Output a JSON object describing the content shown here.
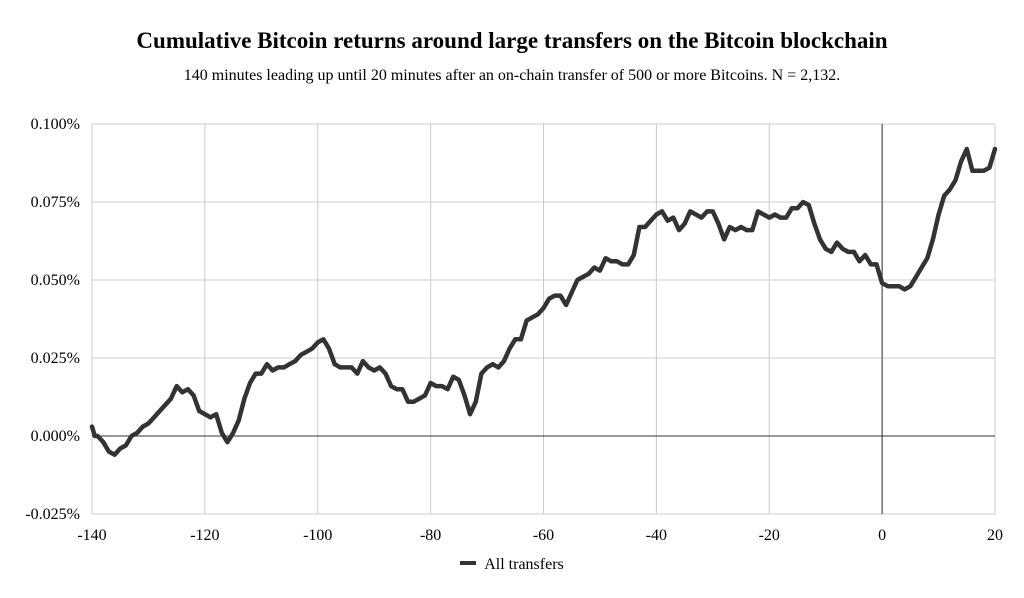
{
  "chart_data": {
    "type": "line",
    "title": "Cumulative Bitcoin returns around large transfers on the Bitcoin blockchain",
    "subtitle": "140 minutes leading up until 20 minutes after an on-chain transfer of 500 or more Bitcoins. N = 2,132.",
    "xlabel": "",
    "ylabel": "",
    "xlim": [
      -140,
      20
    ],
    "ylim": [
      -0.025,
      0.1
    ],
    "x_ticks": [
      -140,
      -120,
      -100,
      -80,
      -60,
      -40,
      -20,
      0,
      20
    ],
    "x_tick_labels": [
      "-140",
      "-120",
      "-100",
      "-80",
      "-60",
      "-40",
      "-20",
      "0",
      "20"
    ],
    "y_ticks": [
      -0.025,
      0,
      0.025,
      0.05,
      0.075,
      0.1
    ],
    "y_tick_labels": [
      "-0.025%",
      "0.000%",
      "0.025%",
      "0.050%",
      "0.075%",
      "0.100%"
    ],
    "grid": true,
    "legend_position": "bottom",
    "line_color": "#333333",
    "series": [
      {
        "name": "All transfers",
        "points": [
          [
            -140,
            0.003
          ],
          [
            -139.5,
            0.0
          ],
          [
            -139,
            0.0
          ],
          [
            -138,
            -0.002
          ],
          [
            -137,
            -0.005
          ],
          [
            -136,
            -0.006
          ],
          [
            -135,
            -0.004
          ],
          [
            -134,
            -0.003
          ],
          [
            -133,
            0.0
          ],
          [
            -132,
            0.001
          ],
          [
            -131,
            0.003
          ],
          [
            -130,
            0.004
          ],
          [
            -129,
            0.006
          ],
          [
            -128,
            0.008
          ],
          [
            -127,
            0.01
          ],
          [
            -126,
            0.012
          ],
          [
            -125,
            0.016
          ],
          [
            -124,
            0.014
          ],
          [
            -123,
            0.015
          ],
          [
            -122,
            0.013
          ],
          [
            -121,
            0.008
          ],
          [
            -120,
            0.007
          ],
          [
            -119,
            0.006
          ],
          [
            -118,
            0.007
          ],
          [
            -117,
            0.001
          ],
          [
            -116,
            -0.002
          ],
          [
            -115,
            0.001
          ],
          [
            -114,
            0.005
          ],
          [
            -113,
            0.012
          ],
          [
            -112,
            0.017
          ],
          [
            -111,
            0.02
          ],
          [
            -110,
            0.02
          ],
          [
            -109,
            0.023
          ],
          [
            -108,
            0.021
          ],
          [
            -107,
            0.022
          ],
          [
            -106,
            0.022
          ],
          [
            -105,
            0.023
          ],
          [
            -104,
            0.024
          ],
          [
            -103,
            0.026
          ],
          [
            -102,
            0.027
          ],
          [
            -101,
            0.028
          ],
          [
            -100,
            0.03
          ],
          [
            -99,
            0.031
          ],
          [
            -98,
            0.028
          ],
          [
            -97,
            0.023
          ],
          [
            -96,
            0.022
          ],
          [
            -95,
            0.022
          ],
          [
            -94,
            0.022
          ],
          [
            -93,
            0.02
          ],
          [
            -92,
            0.024
          ],
          [
            -91,
            0.022
          ],
          [
            -90,
            0.021
          ],
          [
            -89,
            0.022
          ],
          [
            -88,
            0.02
          ],
          [
            -87,
            0.016
          ],
          [
            -86,
            0.015
          ],
          [
            -85,
            0.015
          ],
          [
            -84,
            0.011
          ],
          [
            -83,
            0.011
          ],
          [
            -82,
            0.012
          ],
          [
            -81,
            0.013
          ],
          [
            -80,
            0.017
          ],
          [
            -79,
            0.016
          ],
          [
            -78,
            0.016
          ],
          [
            -77,
            0.015
          ],
          [
            -76,
            0.019
          ],
          [
            -75,
            0.018
          ],
          [
            -74,
            0.013
          ],
          [
            -73,
            0.007
          ],
          [
            -72,
            0.011
          ],
          [
            -71,
            0.02
          ],
          [
            -70,
            0.022
          ],
          [
            -69,
            0.023
          ],
          [
            -68,
            0.022
          ],
          [
            -67,
            0.024
          ],
          [
            -66,
            0.028
          ],
          [
            -65,
            0.031
          ],
          [
            -64,
            0.031
          ],
          [
            -63,
            0.037
          ],
          [
            -62,
            0.038
          ],
          [
            -61,
            0.039
          ],
          [
            -60,
            0.041
          ],
          [
            -59,
            0.044
          ],
          [
            -58,
            0.045
          ],
          [
            -57,
            0.045
          ],
          [
            -56,
            0.042
          ],
          [
            -55,
            0.046
          ],
          [
            -54,
            0.05
          ],
          [
            -53,
            0.051
          ],
          [
            -52,
            0.052
          ],
          [
            -51,
            0.054
          ],
          [
            -50,
            0.053
          ],
          [
            -49,
            0.057
          ],
          [
            -48,
            0.056
          ],
          [
            -47,
            0.056
          ],
          [
            -46,
            0.055
          ],
          [
            -45,
            0.055
          ],
          [
            -44,
            0.058
          ],
          [
            -43,
            0.067
          ],
          [
            -42,
            0.067
          ],
          [
            -41,
            0.069
          ],
          [
            -40,
            0.071
          ],
          [
            -39,
            0.072
          ],
          [
            -38,
            0.069
          ],
          [
            -37,
            0.07
          ],
          [
            -36,
            0.066
          ],
          [
            -35,
            0.068
          ],
          [
            -34,
            0.072
          ],
          [
            -33,
            0.071
          ],
          [
            -32,
            0.07
          ],
          [
            -31,
            0.072
          ],
          [
            -30,
            0.072
          ],
          [
            -29,
            0.068
          ],
          [
            -28,
            0.063
          ],
          [
            -27,
            0.067
          ],
          [
            -26,
            0.066
          ],
          [
            -25,
            0.067
          ],
          [
            -24,
            0.066
          ],
          [
            -23,
            0.066
          ],
          [
            -22,
            0.072
          ],
          [
            -21,
            0.071
          ],
          [
            -20,
            0.07
          ],
          [
            -19,
            0.071
          ],
          [
            -18,
            0.07
          ],
          [
            -17,
            0.07
          ],
          [
            -16,
            0.073
          ],
          [
            -15,
            0.073
          ],
          [
            -14,
            0.075
          ],
          [
            -13,
            0.074
          ],
          [
            -12,
            0.068
          ],
          [
            -11,
            0.063
          ],
          [
            -10,
            0.06
          ],
          [
            -9,
            0.059
          ],
          [
            -8,
            0.062
          ],
          [
            -7,
            0.06
          ],
          [
            -6,
            0.059
          ],
          [
            -5,
            0.059
          ],
          [
            -4,
            0.056
          ],
          [
            -3,
            0.058
          ],
          [
            -2,
            0.055
          ],
          [
            -1,
            0.055
          ],
          [
            0,
            0.049
          ],
          [
            1,
            0.048
          ],
          [
            2,
            0.048
          ],
          [
            3,
            0.048
          ],
          [
            4,
            0.047
          ],
          [
            5,
            0.048
          ],
          [
            6,
            0.051
          ],
          [
            7,
            0.054
          ],
          [
            8,
            0.057
          ],
          [
            9,
            0.063
          ],
          [
            10,
            0.071
          ],
          [
            11,
            0.077
          ],
          [
            12,
            0.079
          ],
          [
            13,
            0.082
          ],
          [
            14,
            0.088
          ],
          [
            15,
            0.092
          ],
          [
            16,
            0.085
          ],
          [
            17,
            0.085
          ],
          [
            18,
            0.085
          ],
          [
            19,
            0.086
          ],
          [
            20,
            0.092
          ]
        ]
      }
    ]
  }
}
